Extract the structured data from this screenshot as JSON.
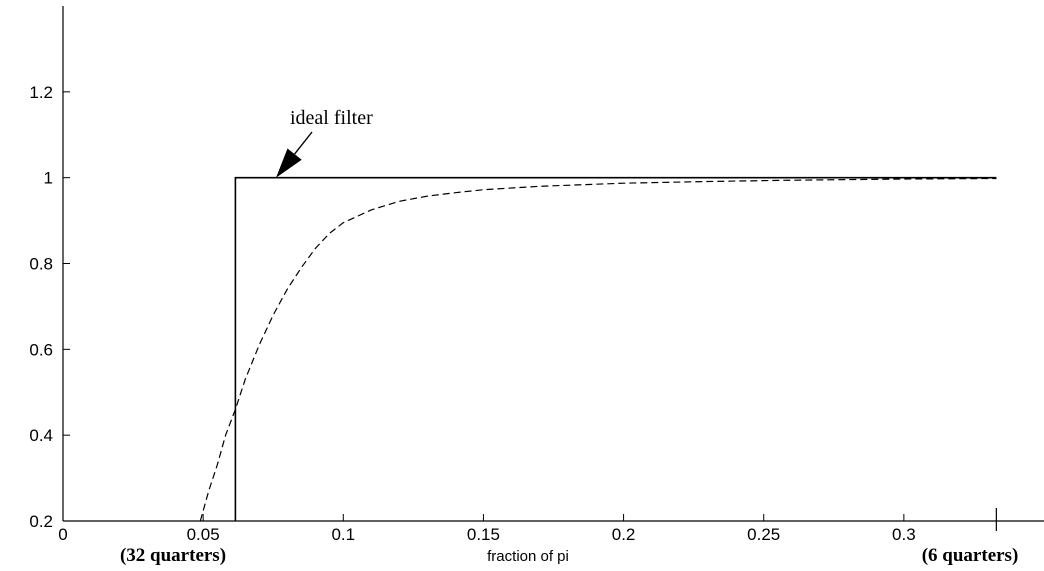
{
  "chart_data": {
    "type": "line",
    "title": "",
    "xlabel": "fraction of pi",
    "ylabel": "",
    "xlim": [
      0,
      0.35
    ],
    "ylim": [
      0.2,
      1.4
    ],
    "x_ticks": [
      0,
      0.05,
      0.1,
      0.15,
      0.2,
      0.25,
      0.3
    ],
    "x_tick_labels": [
      "0",
      "0.05",
      "0.1",
      "0.15",
      "0.2",
      "0.25",
      "0.3"
    ],
    "y_ticks": [
      0.2,
      0.4,
      0.6,
      0.8,
      1,
      1.2
    ],
    "y_tick_labels": [
      "0.2",
      "0.4",
      "0.6",
      "0.8",
      "1",
      "1.2"
    ],
    "bottom_notes": {
      "left": "(32 quarters)",
      "right": "(6 quarters)",
      "right_marker_x": 0.333
    },
    "annotation": {
      "text": "ideal filter",
      "points_to": [
        0.076,
        1.0
      ]
    },
    "series": [
      {
        "style": "solid",
        "role": "ideal",
        "x": [
          0.0615,
          0.0615,
          0.0625,
          0.333
        ],
        "y": [
          0.2,
          1.0,
          1.0,
          1.0
        ]
      },
      {
        "style": "dashed",
        "role": "approximation",
        "x": [
          0.049,
          0.052,
          0.055,
          0.058,
          0.0615,
          0.065,
          0.07,
          0.075,
          0.08,
          0.085,
          0.09,
          0.095,
          0.1,
          0.11,
          0.12,
          0.13,
          0.14,
          0.15,
          0.17,
          0.2,
          0.23,
          0.26,
          0.3,
          0.333
        ],
        "y": [
          0.2,
          0.27,
          0.33,
          0.4,
          0.46,
          0.53,
          0.61,
          0.68,
          0.74,
          0.79,
          0.835,
          0.87,
          0.895,
          0.925,
          0.945,
          0.957,
          0.965,
          0.972,
          0.98,
          0.987,
          0.991,
          0.994,
          0.997,
          0.998
        ]
      }
    ]
  }
}
